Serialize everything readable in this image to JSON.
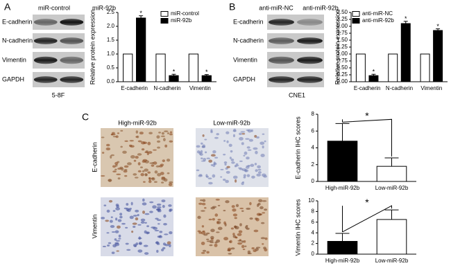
{
  "panel_labels": [
    "A",
    "B",
    "C"
  ],
  "blots": [
    {
      "columns": [
        "miR-control",
        "miR-92b"
      ],
      "rows": [
        "E-cadherin",
        "N-cadherin",
        "Vimentin",
        "GAPDH"
      ],
      "cell_line": "5-8F"
    },
    {
      "columns": [
        "anti-miR-NC",
        "anti-miR-92b"
      ],
      "rows": [
        "E-cadherin",
        "N-cadherin",
        "Vimentin",
        "GAPDH"
      ],
      "cell_line": "CNE1"
    }
  ],
  "ihc": {
    "columns": [
      "High-miR-92b",
      "Low-miR-92b"
    ],
    "rows": [
      "E-cadherin",
      "Vimentin"
    ]
  },
  "chart_data": [
    {
      "type": "bar",
      "y_label": "Relative protein expression",
      "categories": [
        "E-cadherin",
        "N-cadherin",
        "Vimentin"
      ],
      "series": [
        {
          "name": "miR-control",
          "color": "#ffffff",
          "values": [
            1,
            1,
            1
          ]
        },
        {
          "name": "miR-92b",
          "color": "#000000",
          "values": [
            2.3,
            0.22,
            0.22
          ],
          "errors": [
            0.08,
            0.05,
            0.04
          ]
        }
      ],
      "annotation": "*",
      "ylim": [
        0,
        2.5
      ],
      "yticks": [
        {
          "value": 0,
          "label": "0.0"
        },
        {
          "value": 0.5,
          "label": "0.5"
        },
        {
          "value": 1,
          "label": "1.0"
        },
        {
          "value": 1.5,
          "label": "1.5"
        },
        {
          "value": 2,
          "label": "2.0"
        },
        {
          "value": 2.5,
          "label": "2.5"
        }
      ],
      "legend": "upper right"
    },
    {
      "type": "bar",
      "y_label": "Relative protein expression",
      "categories": [
        "E-cadherin",
        "N-cadherin",
        "Vimentin"
      ],
      "series": [
        {
          "name": "anti-miR-NC",
          "color": "#ffffff",
          "values": [
            1,
            1,
            1
          ]
        },
        {
          "name": "anti-miR-92b",
          "color": "#000000",
          "values": [
            0.22,
            2.1,
            1.85
          ],
          "errors": [
            0.05,
            0.08,
            0.06
          ]
        }
      ],
      "annotation": "*",
      "ylim": [
        0,
        2.5
      ],
      "yticks": [
        {
          "value": 0,
          "label": "0.00"
        },
        {
          "value": 0.25,
          "label": "0.25"
        },
        {
          "value": 0.5,
          "label": "0.50"
        },
        {
          "value": 0.75,
          "label": "0.75"
        },
        {
          "value": 1,
          "label": "1.00"
        },
        {
          "value": 1.25,
          "label": "1.25"
        },
        {
          "value": 1.5,
          "label": "1.50"
        },
        {
          "value": 1.75,
          "label": "1.75"
        },
        {
          "value": 2,
          "label": "2.00"
        },
        {
          "value": 2.25,
          "label": "2.25"
        },
        {
          "value": 2.5,
          "label": "2.50"
        }
      ],
      "legend": "upper left"
    },
    {
      "type": "bar",
      "y_label": "E-cadherin IHC scores",
      "categories": [
        "High-miR-92b",
        "Low-miR-92b"
      ],
      "values": [
        4.8,
        1.8
      ],
      "errors": [
        2.1,
        1.0
      ],
      "colors": [
        "#000000",
        "#ffffff"
      ],
      "annotation": "*",
      "ylim": [
        0,
        8
      ],
      "yticks": [
        0,
        2,
        4,
        6,
        8
      ]
    },
    {
      "type": "bar",
      "y_label": "Vimentin IHC scores",
      "categories": [
        "High-miR-92b",
        "Low-miR-92b"
      ],
      "values": [
        2.4,
        6.5
      ],
      "errors": [
        1.5,
        1.8
      ],
      "colors": [
        "#000000",
        "#ffffff"
      ],
      "annotation": "*",
      "ylim": [
        0,
        10
      ],
      "yticks": [
        0,
        2,
        4,
        6,
        8,
        10
      ]
    }
  ]
}
